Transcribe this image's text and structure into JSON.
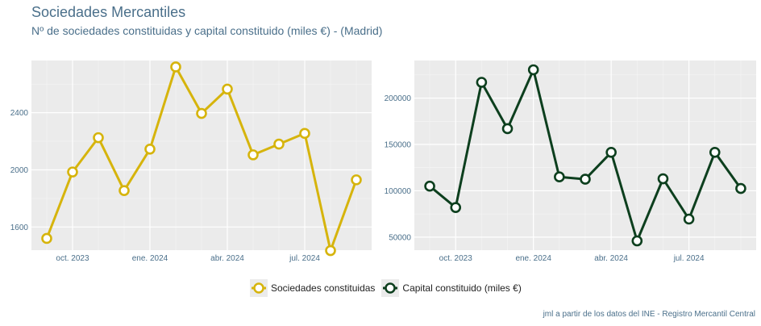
{
  "title": "Sociedades Mercantiles",
  "subtitle": "Nº de sociedades constituidas y capital constituido (miles €) - (Madrid)",
  "caption": "jml a partir de los datos del INE - Registro Mercantil Central",
  "colors": {
    "left": "#d6b40c",
    "right": "#0d3f1e"
  },
  "legend": [
    {
      "label": "Sociedades constituidas",
      "color": "#d6b40c"
    },
    {
      "label": "Capital constituido (miles €)",
      "color": "#0d3f1e"
    }
  ],
  "chart_data": [
    {
      "type": "line",
      "series_name": "Sociedades constituidas",
      "x_index": [
        0,
        1,
        2,
        3,
        4,
        5,
        6,
        7,
        8,
        9,
        10,
        11,
        12
      ],
      "values": [
        1520,
        1985,
        2225,
        1855,
        2145,
        2720,
        2395,
        2565,
        2105,
        2180,
        2255,
        1435,
        1930
      ],
      "ylim": [
        1438,
        2765
      ],
      "yticks": [
        1600,
        2000,
        2400
      ],
      "ytick_labels": [
        "1600",
        "2000",
        "2400"
      ],
      "xticks": [
        1,
        4,
        7,
        10
      ],
      "xtick_labels": [
        "oct. 2023",
        "ene. 2024",
        "abr. 2024",
        "jul. 2024"
      ]
    },
    {
      "type": "line",
      "series_name": "Capital constituido (miles €)",
      "x_index": [
        0,
        1,
        2,
        3,
        4,
        5,
        6,
        7,
        8,
        9,
        10,
        11,
        12
      ],
      "values": [
        105000,
        82000,
        217000,
        167000,
        230500,
        115000,
        112500,
        141500,
        46000,
        113000,
        69500,
        141500,
        102500
      ],
      "ylim": [
        36000,
        240500
      ],
      "yticks": [
        50000,
        100000,
        150000,
        200000
      ],
      "ytick_labels": [
        "50000",
        "100000",
        "150000",
        "200000"
      ],
      "xticks": [
        1,
        4,
        7,
        10
      ],
      "xtick_labels": [
        "oct. 2023",
        "ene. 2024",
        "abr. 2024",
        "jul. 2024"
      ]
    }
  ]
}
